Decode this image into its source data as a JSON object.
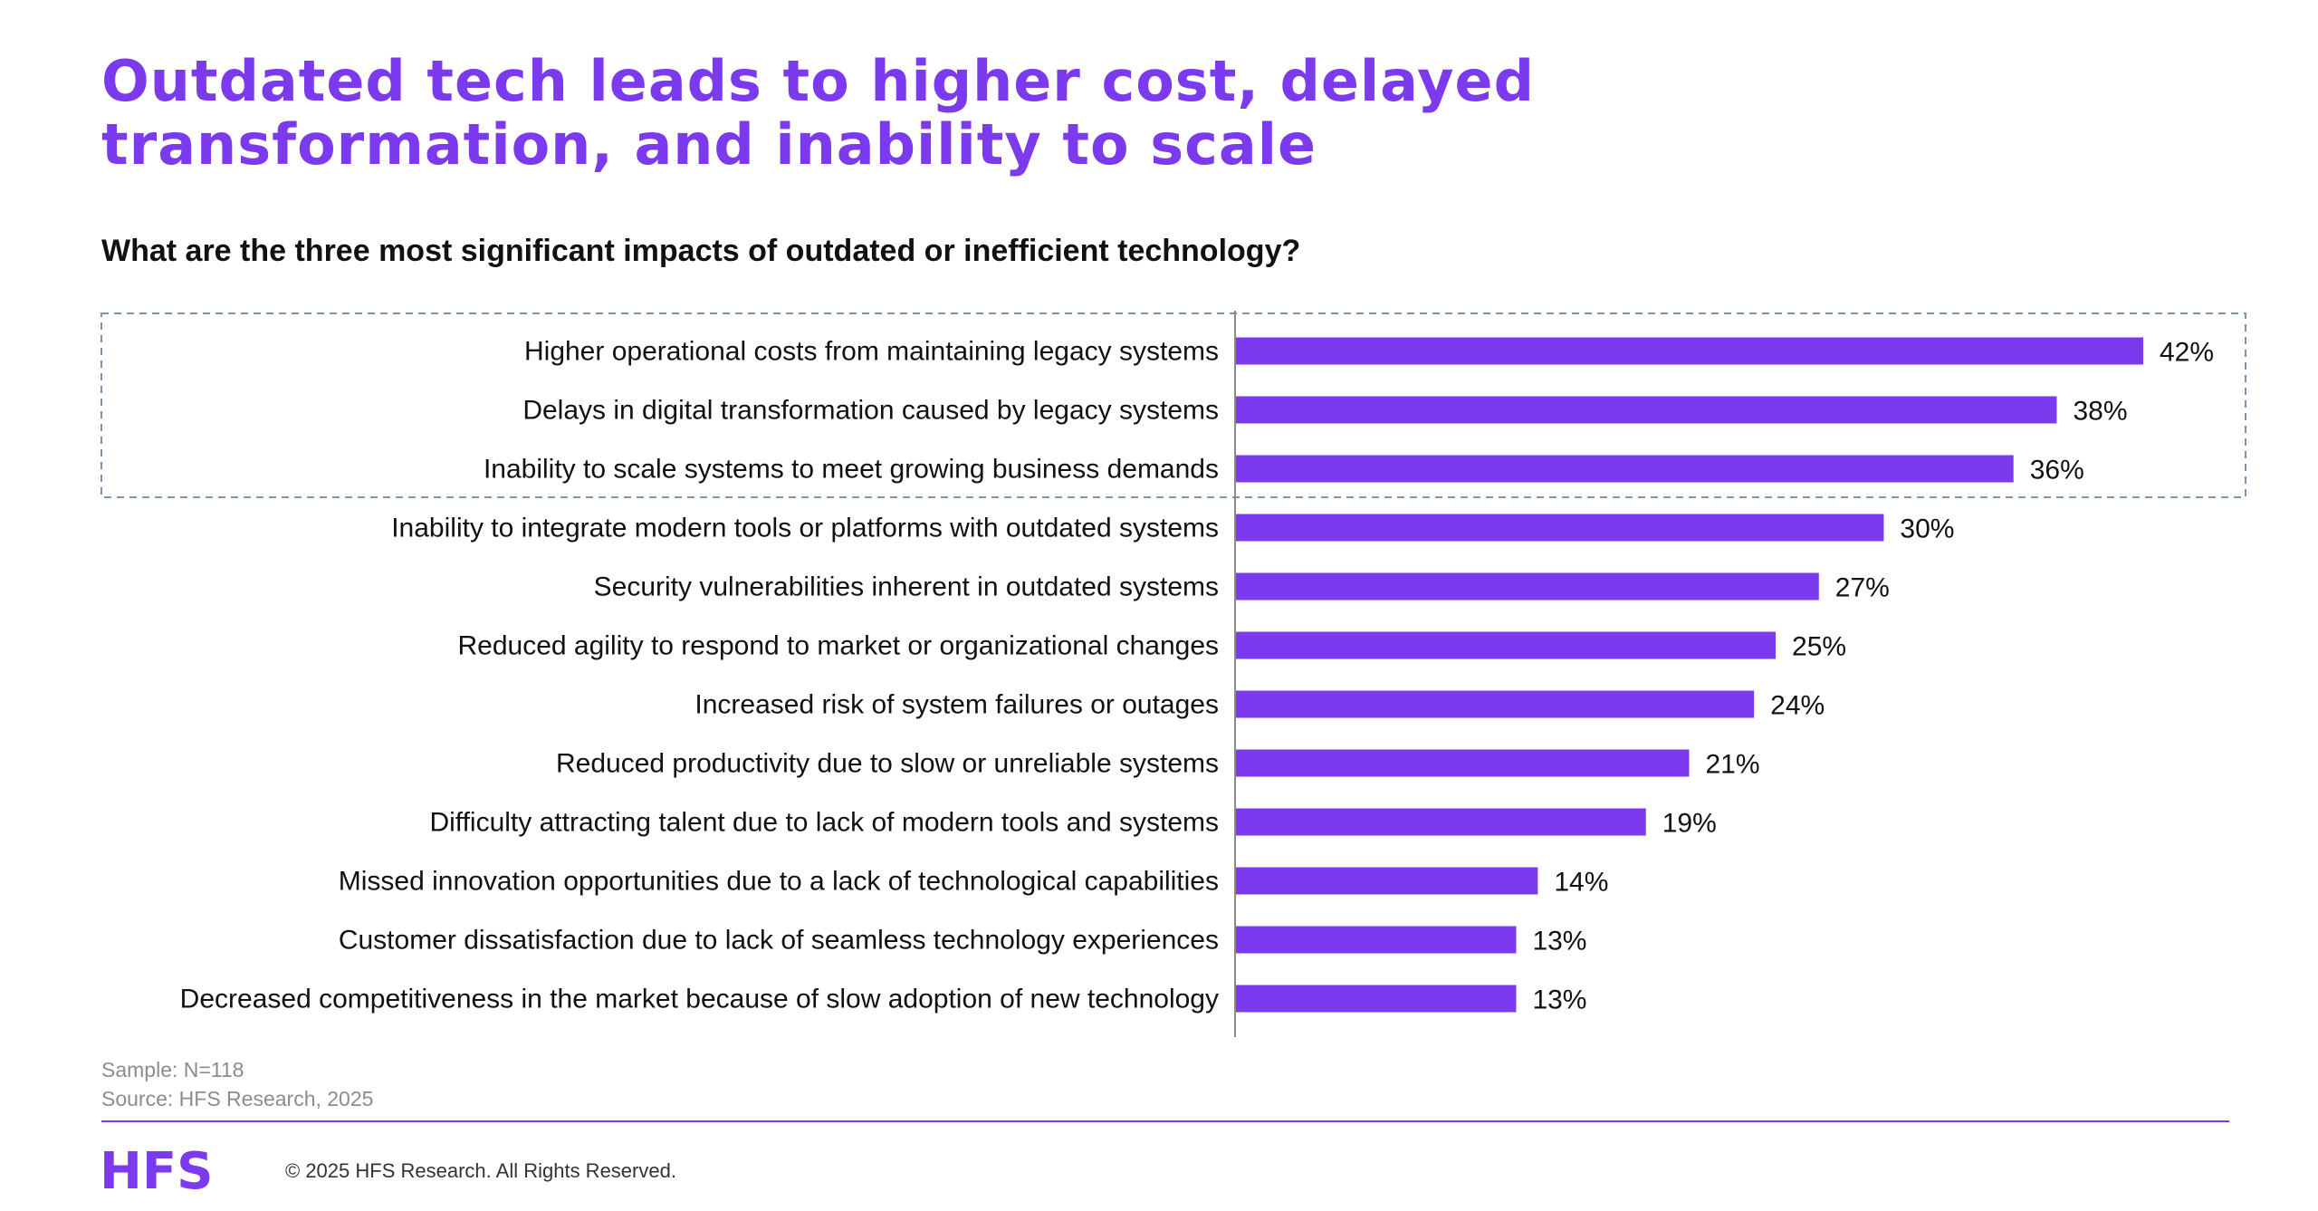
{
  "header": {
    "title_line1": "Outdated tech leads to higher cost, delayed",
    "title_line2": "transformation, and inability to scale",
    "question": "What are the three most significant impacts of outdated or inefficient technology?"
  },
  "chart_data": {
    "type": "bar",
    "orientation": "horizontal",
    "categories": [
      "Higher operational costs from maintaining legacy systems",
      "Delays in digital transformation caused by legacy systems",
      "Inability to scale systems to meet growing business demands",
      "Inability to integrate modern tools or platforms with outdated systems",
      "Security vulnerabilities inherent in outdated systems",
      "Reduced agility to respond to market or organizational changes",
      "Increased risk of system failures or outages",
      "Reduced productivity due to slow or unreliable systems",
      "Difficulty attracting talent due to lack of modern tools and systems",
      "Missed innovation opportunities due to a lack of technological capabilities",
      "Customer dissatisfaction due to lack of seamless technology experiences",
      "Decreased competitiveness in the market because of slow adoption of new technology"
    ],
    "values": [
      42,
      38,
      36,
      30,
      27,
      25,
      24,
      21,
      19,
      14,
      13,
      13
    ],
    "value_labels": [
      "42%",
      "38%",
      "36%",
      "30%",
      "27%",
      "25%",
      "24%",
      "21%",
      "19%",
      "14%",
      "13%",
      "13%"
    ],
    "highlighted_count": 3,
    "xlim": [
      0,
      45
    ],
    "grid": false,
    "legend": "none",
    "bar_color": "#7b3aed",
    "highlight_border_color": "#7a95b0"
  },
  "footer": {
    "sample": "Sample: N=118",
    "source": "Source: HFS Research, 2025",
    "logo_text": "HFS",
    "copyright": "© 2025 HFS Research. All Rights Reserved."
  },
  "colors": {
    "accent": "#7b3aed",
    "text": "#111111",
    "muted": "#8c8c8c"
  }
}
